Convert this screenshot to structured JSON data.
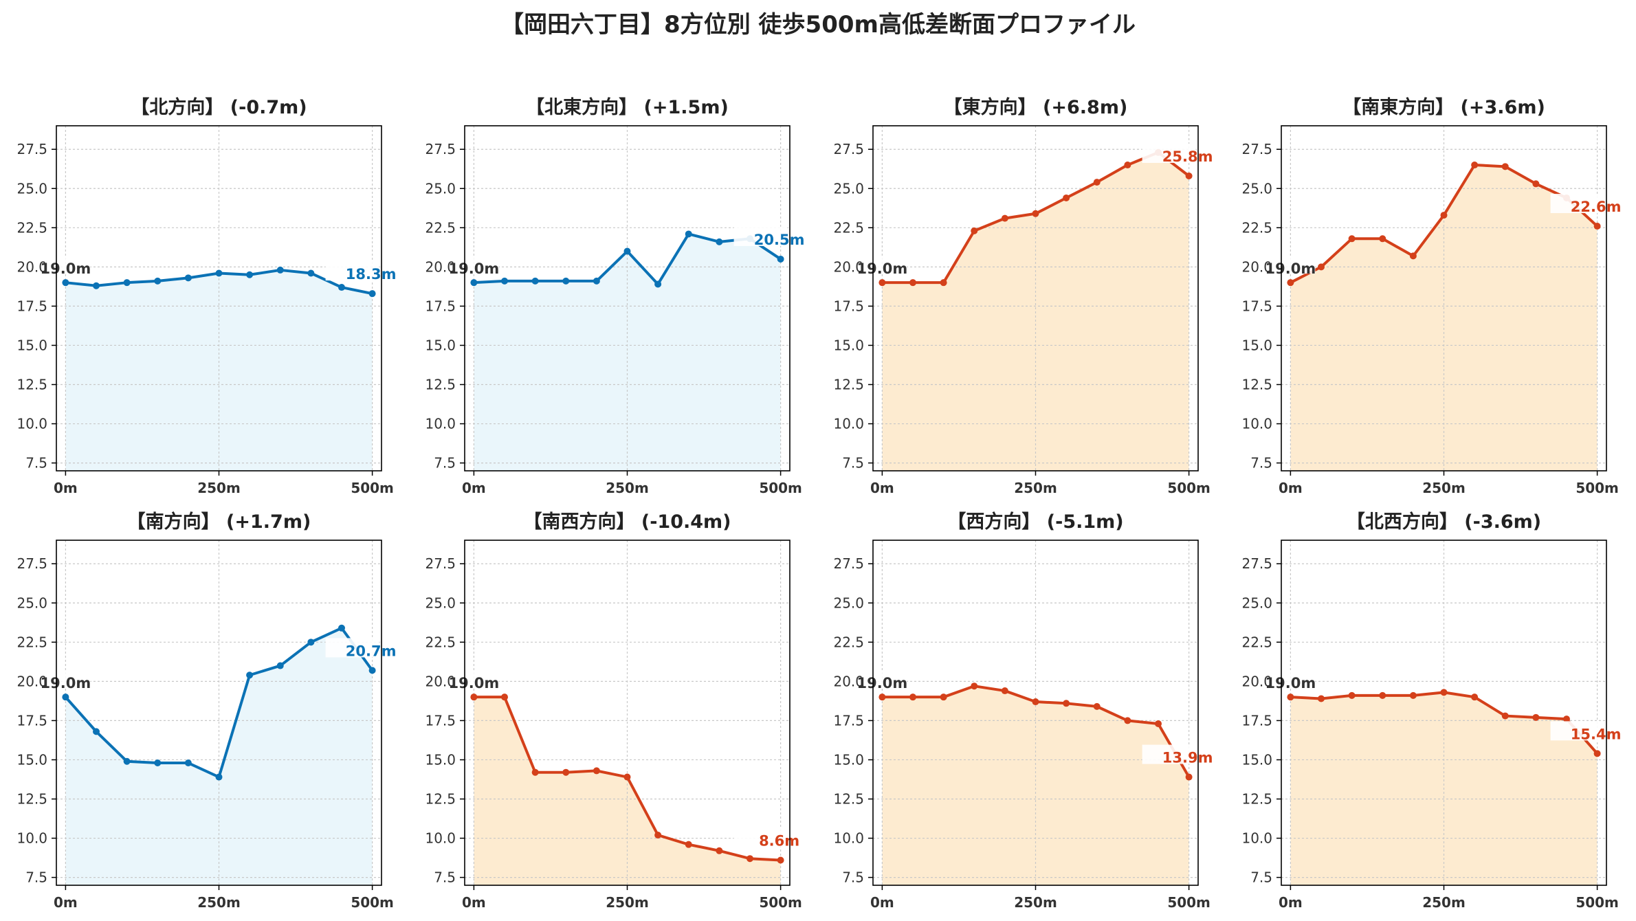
{
  "title": "【岡田六丁目】8方位別 徒歩500m高低差断面プロファイル",
  "colors": {
    "up_line": "#d4401a",
    "up_fill": "#fdebd0",
    "down_line": "#0b72b5",
    "down_fill": "#eaf6fb",
    "grid": "#c8c8c8",
    "axis": "#000000"
  },
  "chart_data": [
    {
      "type": "line",
      "title": "【北方向】 (-0.7m)",
      "trend": "down",
      "start_label": "19.0m",
      "end_label": "18.3m",
      "x": [
        0,
        50,
        100,
        150,
        200,
        250,
        300,
        350,
        400,
        450,
        500
      ],
      "y": [
        19.0,
        18.8,
        19.0,
        19.1,
        19.3,
        19.6,
        19.5,
        19.8,
        19.6,
        18.7,
        18.3
      ],
      "ylim": [
        7.0,
        29.0
      ],
      "xlim": [
        -15,
        515
      ],
      "yticks": [
        "7.5",
        "10.0",
        "12.5",
        "15.0",
        "17.5",
        "20.0",
        "22.5",
        "25.0",
        "27.5"
      ],
      "xticks": [
        "0m",
        "250m",
        "500m"
      ],
      "grid": true
    },
    {
      "type": "line",
      "title": "【北東方向】 (+1.5m)",
      "trend": "down",
      "start_label": "19.0m",
      "end_label": "20.5m",
      "x": [
        0,
        50,
        100,
        150,
        200,
        250,
        300,
        350,
        400,
        450,
        500
      ],
      "y": [
        19.0,
        19.1,
        19.1,
        19.1,
        19.1,
        21.0,
        18.9,
        22.1,
        21.6,
        21.8,
        20.5
      ],
      "ylim": [
        7.0,
        29.0
      ],
      "xlim": [
        -15,
        515
      ],
      "yticks": [
        "7.5",
        "10.0",
        "12.5",
        "15.0",
        "17.5",
        "20.0",
        "22.5",
        "25.0",
        "27.5"
      ],
      "xticks": [
        "0m",
        "250m",
        "500m"
      ],
      "grid": true
    },
    {
      "type": "line",
      "title": "【東方向】 (+6.8m)",
      "trend": "up",
      "start_label": "19.0m",
      "end_label": "25.8m",
      "x": [
        0,
        50,
        100,
        150,
        200,
        250,
        300,
        350,
        400,
        450,
        500
      ],
      "y": [
        19.0,
        19.0,
        19.0,
        22.3,
        23.1,
        23.4,
        24.4,
        25.4,
        26.5,
        27.3,
        25.8
      ],
      "ylim": [
        7.0,
        29.0
      ],
      "xlim": [
        -15,
        515
      ],
      "yticks": [
        "7.5",
        "10.0",
        "12.5",
        "15.0",
        "17.5",
        "20.0",
        "22.5",
        "25.0",
        "27.5"
      ],
      "xticks": [
        "0m",
        "250m",
        "500m"
      ],
      "grid": true
    },
    {
      "type": "line",
      "title": "【南東方向】 (+3.6m)",
      "trend": "up",
      "start_label": "19.0m",
      "end_label": "22.6m",
      "x": [
        0,
        50,
        100,
        150,
        200,
        250,
        300,
        350,
        400,
        450,
        500
      ],
      "y": [
        19.0,
        20.0,
        21.8,
        21.8,
        20.7,
        23.3,
        26.5,
        26.4,
        25.3,
        24.4,
        22.6
      ],
      "ylim": [
        7.0,
        29.0
      ],
      "xlim": [
        -15,
        515
      ],
      "yticks": [
        "7.5",
        "10.0",
        "12.5",
        "15.0",
        "17.5",
        "20.0",
        "22.5",
        "25.0",
        "27.5"
      ],
      "xticks": [
        "0m",
        "250m",
        "500m"
      ],
      "grid": true
    },
    {
      "type": "line",
      "title": "【南方向】 (+1.7m)",
      "trend": "down",
      "start_label": "19.0m",
      "end_label": "20.7m",
      "x": [
        0,
        50,
        100,
        150,
        200,
        250,
        300,
        350,
        400,
        450,
        500
      ],
      "y": [
        19.0,
        16.8,
        14.9,
        14.8,
        14.8,
        13.9,
        20.4,
        21.0,
        22.5,
        23.4,
        20.7
      ],
      "ylim": [
        7.0,
        29.0
      ],
      "xlim": [
        -15,
        515
      ],
      "yticks": [
        "7.5",
        "10.0",
        "12.5",
        "15.0",
        "17.5",
        "20.0",
        "22.5",
        "25.0",
        "27.5"
      ],
      "xticks": [
        "0m",
        "250m",
        "500m"
      ],
      "grid": true
    },
    {
      "type": "line",
      "title": "【南西方向】 (-10.4m)",
      "trend": "up",
      "start_label": "19.0m",
      "end_label": "8.6m",
      "x": [
        0,
        50,
        100,
        150,
        200,
        250,
        300,
        350,
        400,
        450,
        500
      ],
      "y": [
        19.0,
        19.0,
        14.2,
        14.2,
        14.3,
        13.9,
        10.2,
        9.6,
        9.2,
        8.7,
        8.6
      ],
      "ylim": [
        7.0,
        29.0
      ],
      "xlim": [
        -15,
        515
      ],
      "yticks": [
        "7.5",
        "10.0",
        "12.5",
        "15.0",
        "17.5",
        "20.0",
        "22.5",
        "25.0",
        "27.5"
      ],
      "xticks": [
        "0m",
        "250m",
        "500m"
      ],
      "grid": true
    },
    {
      "type": "line",
      "title": "【西方向】 (-5.1m)",
      "trend": "up",
      "start_label": "19.0m",
      "end_label": "13.9m",
      "x": [
        0,
        50,
        100,
        150,
        200,
        250,
        300,
        350,
        400,
        450,
        500
      ],
      "y": [
        19.0,
        19.0,
        19.0,
        19.7,
        19.4,
        18.7,
        18.6,
        18.4,
        17.5,
        17.3,
        13.9
      ],
      "ylim": [
        7.0,
        29.0
      ],
      "xlim": [
        -15,
        515
      ],
      "yticks": [
        "7.5",
        "10.0",
        "12.5",
        "15.0",
        "17.5",
        "20.0",
        "22.5",
        "25.0",
        "27.5"
      ],
      "xticks": [
        "0m",
        "250m",
        "500m"
      ],
      "grid": true
    },
    {
      "type": "line",
      "title": "【北西方向】 (-3.6m)",
      "trend": "up",
      "start_label": "19.0m",
      "end_label": "15.4m",
      "x": [
        0,
        50,
        100,
        150,
        200,
        250,
        300,
        350,
        400,
        450,
        500
      ],
      "y": [
        19.0,
        18.9,
        19.1,
        19.1,
        19.1,
        19.3,
        19.0,
        17.8,
        17.7,
        17.6,
        15.4
      ],
      "ylim": [
        7.0,
        29.0
      ],
      "xlim": [
        -15,
        515
      ],
      "yticks": [
        "7.5",
        "10.0",
        "12.5",
        "15.0",
        "17.5",
        "20.0",
        "22.5",
        "25.0",
        "27.5"
      ],
      "xticks": [
        "0m",
        "250m",
        "500m"
      ],
      "grid": true
    }
  ]
}
